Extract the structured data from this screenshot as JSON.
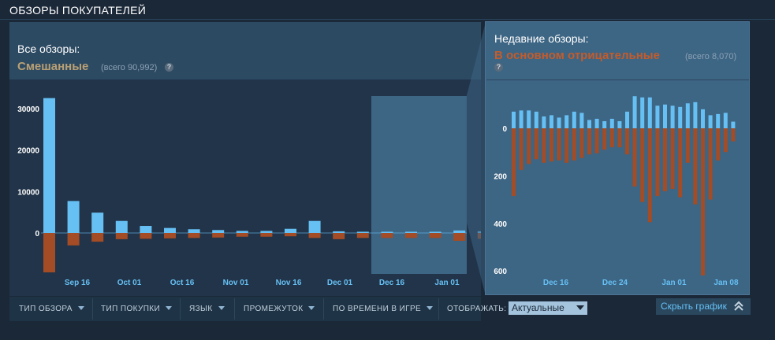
{
  "header": {
    "title": "ОБЗОРЫ ПОКУПАТЕЛЕЙ"
  },
  "all_reviews": {
    "label": "Все обзоры:",
    "rating": "Смешанные",
    "total": "(всего 90,992)",
    "help": "?"
  },
  "recent_reviews": {
    "label": "Недавние обзоры:",
    "rating": "В основном отрицательные",
    "total": "(всего 8,070)",
    "help": "?"
  },
  "filters": {
    "review_type": "ТИП ОБЗОРА",
    "purchase_type": "ТИП ПОКУПКИ",
    "language": "ЯЗЫК",
    "date_range": "ПРОМЕЖУТОК",
    "playtime": "ПО ВРЕМЕНИ В ИГРЕ",
    "display_label": "ОТОБРАЖАТЬ:",
    "display_value": "Актуальные"
  },
  "hide_graph": "Скрыть график",
  "colors": {
    "positive": "#66c0f4",
    "negative": "#a34c25",
    "all_rating": "#b9a074",
    "recent_rating": "#c35c2c"
  },
  "chart_data": [
    {
      "type": "bar",
      "title": "Все обзоры",
      "x_ticks": [
        "Sep 16",
        "Oct 01",
        "Oct 16",
        "Nov 01",
        "Nov 16",
        "Dec 01",
        "Dec 16",
        "Jan 01"
      ],
      "y_ticks": [
        0,
        10000,
        20000,
        30000
      ],
      "ylim": [
        -9500,
        33000
      ],
      "highlight": "recent period (Dec 16 – Jan 01)",
      "series": [
        {
          "name": "positive",
          "values": [
            32500,
            7700,
            4900,
            2900,
            1700,
            1200,
            900,
            700,
            500,
            500,
            1000,
            2900,
            400,
            300,
            300,
            300,
            300,
            600,
            400
          ]
        },
        {
          "name": "negative",
          "values": [
            -9500,
            -3000,
            -2100,
            -1500,
            -1400,
            -1300,
            -1200,
            -1100,
            -900,
            -900,
            -800,
            -1200,
            -1500,
            -1200,
            -1200,
            -1200,
            -1200,
            -1900,
            -1400
          ]
        }
      ]
    },
    {
      "type": "bar",
      "title": "Недавние обзоры",
      "x_ticks": [
        "Dec 16",
        "Dec 24",
        "Jan 01",
        "Jan 08"
      ],
      "y_ticks": [
        0,
        200,
        400,
        600
      ],
      "ylim": [
        -610,
        145
      ],
      "series": [
        {
          "name": "positive",
          "values": [
            70,
            75,
            75,
            70,
            50,
            55,
            45,
            55,
            70,
            65,
            35,
            40,
            30,
            40,
            30,
            70,
            135,
            130,
            130,
            95,
            100,
            95,
            90,
            105,
            110,
            80,
            55,
            60,
            65,
            28
          ]
        },
        {
          "name": "negative",
          "values": [
            -285,
            -175,
            -150,
            -130,
            -145,
            -140,
            -135,
            -145,
            -135,
            -125,
            -110,
            -105,
            -90,
            -80,
            -80,
            -110,
            -245,
            -310,
            -395,
            -285,
            -265,
            -255,
            -290,
            -145,
            -320,
            -620,
            -300,
            -135,
            -100,
            -55
          ]
        }
      ]
    }
  ]
}
